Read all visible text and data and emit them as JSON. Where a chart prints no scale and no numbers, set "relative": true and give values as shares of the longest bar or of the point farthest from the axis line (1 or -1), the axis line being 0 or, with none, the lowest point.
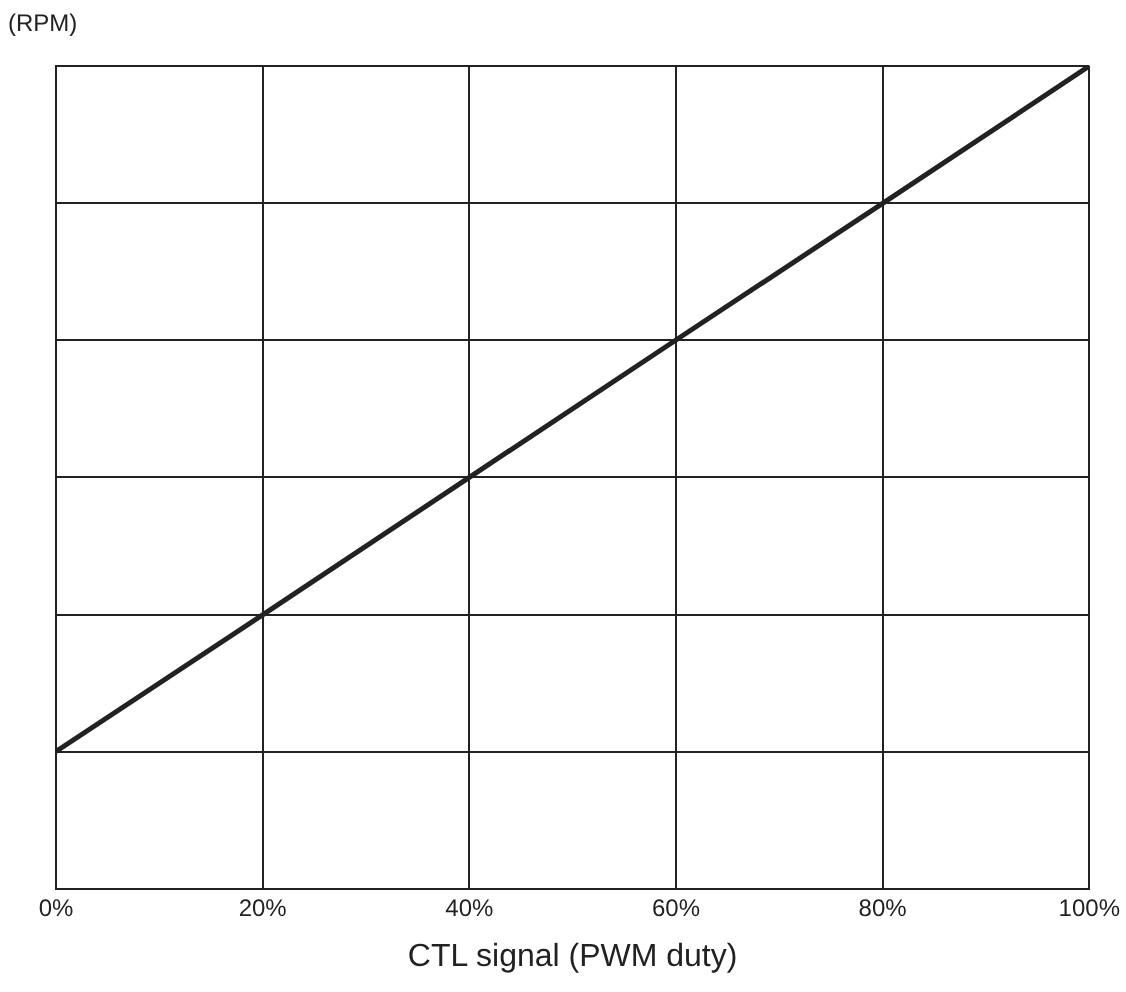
{
  "chart_data": {
    "type": "line",
    "xlabel": "CTL signal (PWM duty)",
    "ylabel": "(RPM)",
    "relative": true,
    "x": [
      0,
      20,
      40,
      60,
      80,
      100
    ],
    "series": [
      {
        "color": "#222222",
        "values": [
          0.167,
          0.333,
          0.5,
          0.667,
          0.833,
          1
        ]
      }
    ],
    "xlim": [
      0,
      100
    ],
    "xticks": [
      {
        "value": 0,
        "label": "0%"
      },
      {
        "value": 20,
        "label": "20%"
      },
      {
        "value": 40,
        "label": "40%"
      },
      {
        "value": 60,
        "label": "60%"
      },
      {
        "value": 80,
        "label": "80%"
      },
      {
        "value": 100,
        "label": "100%"
      }
    ],
    "grid": true,
    "legend": false,
    "marker": "none",
    "line_style": "solid"
  }
}
